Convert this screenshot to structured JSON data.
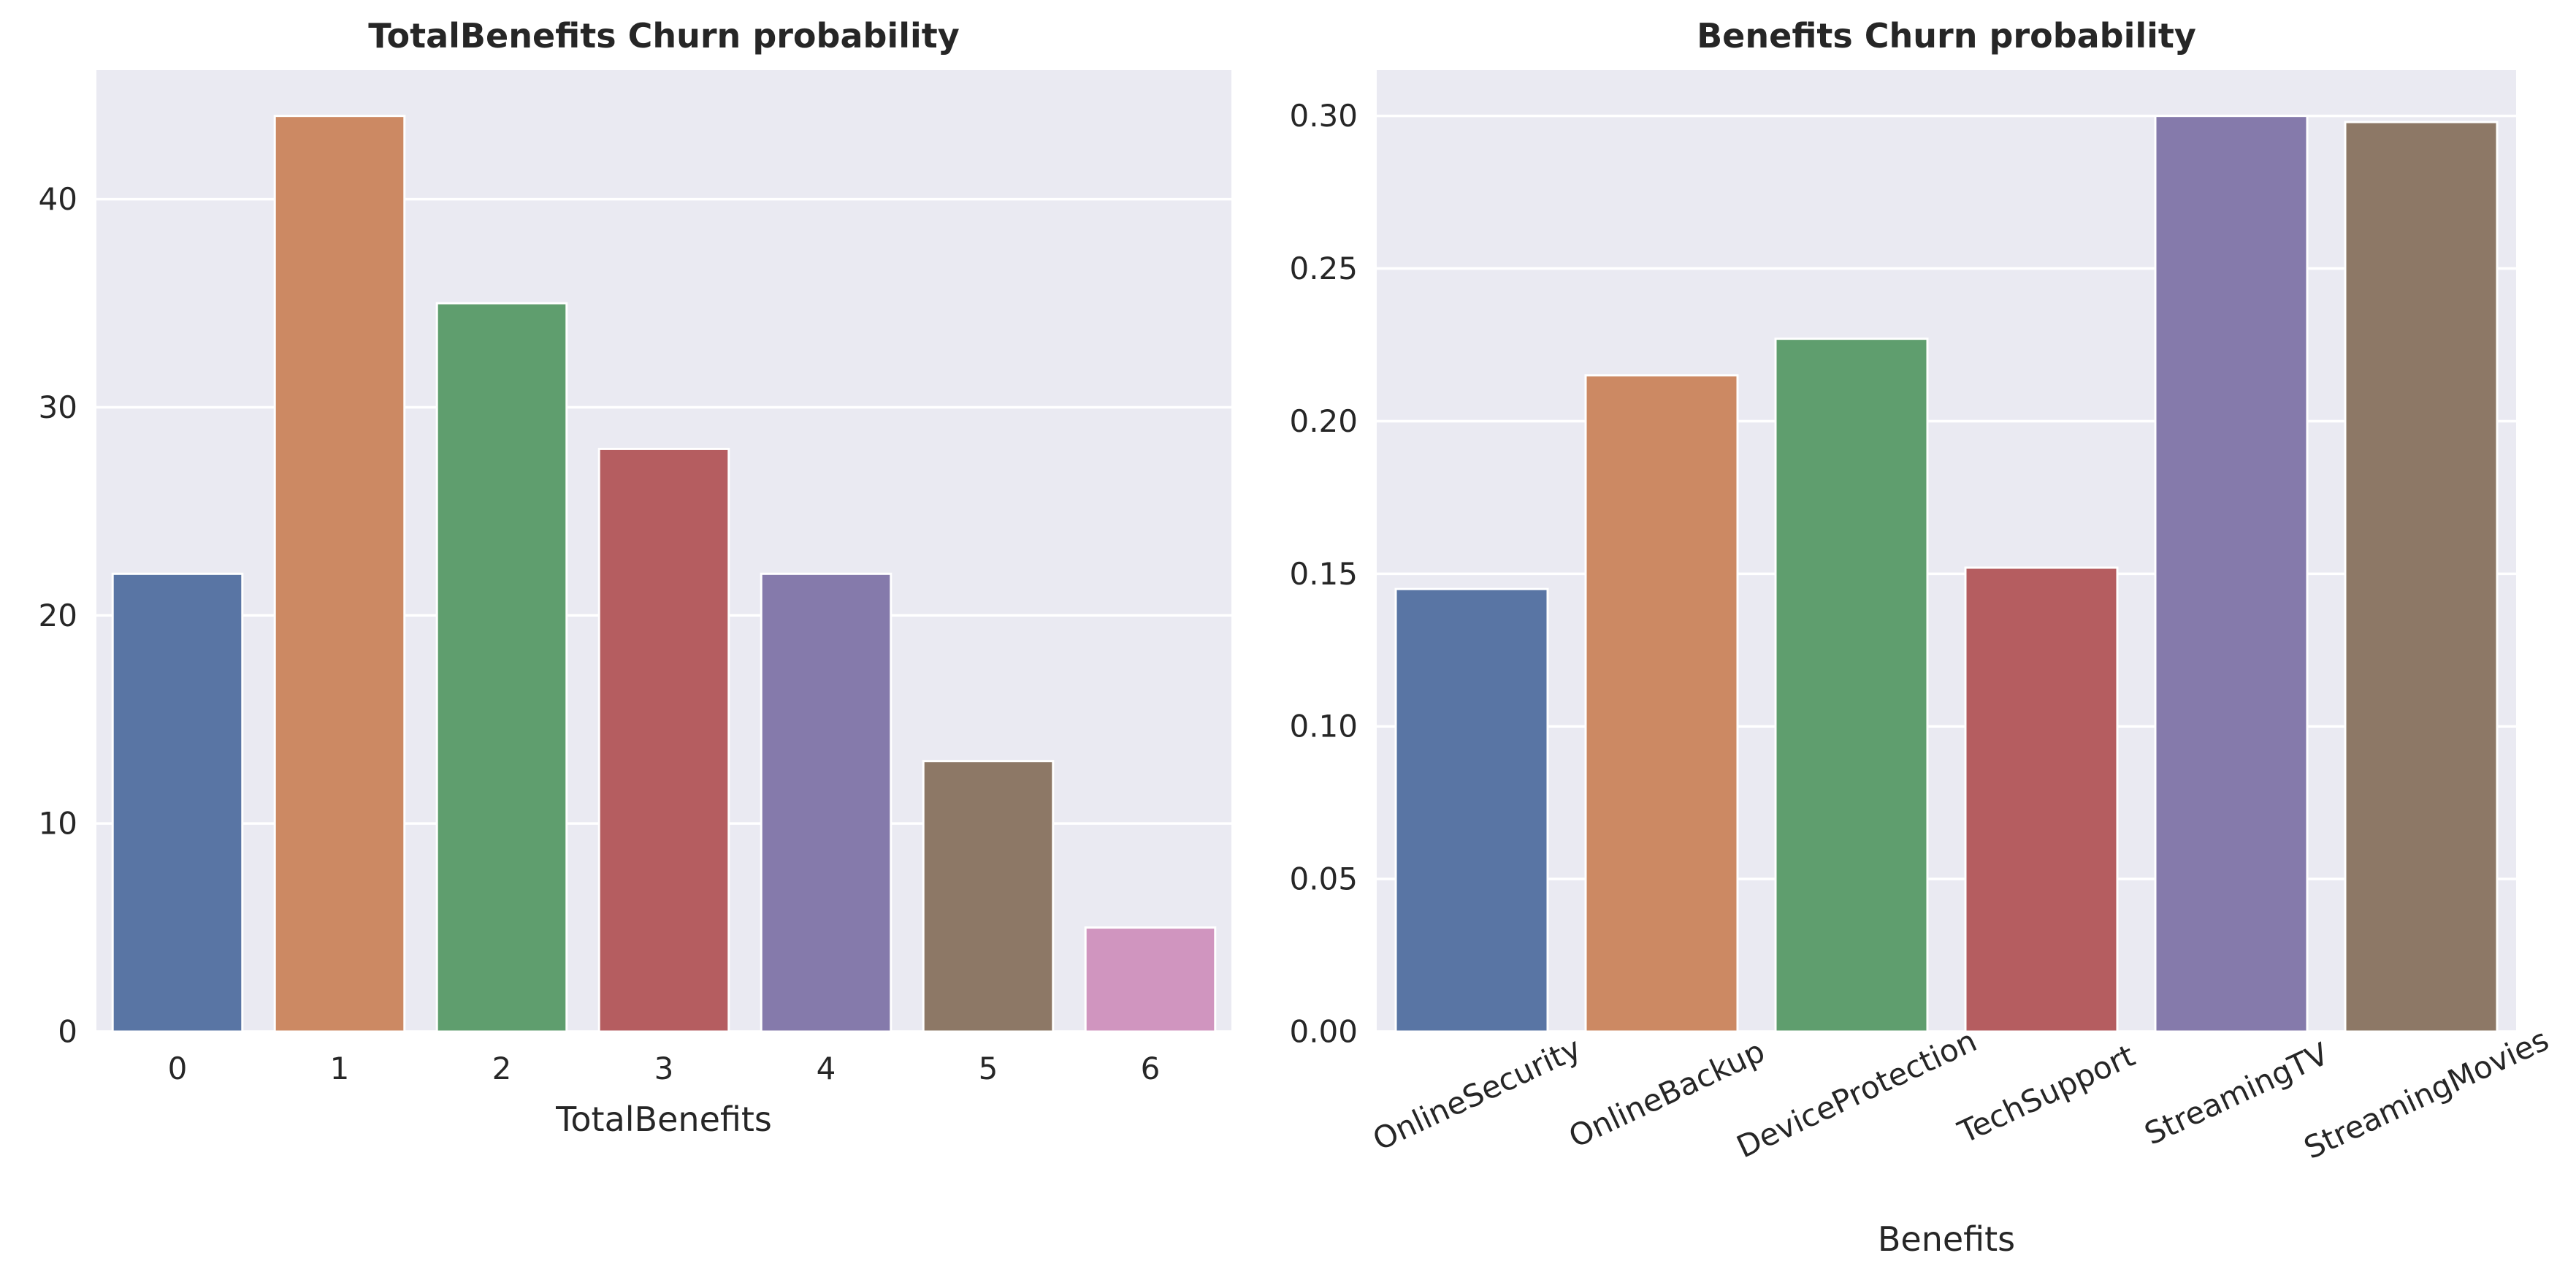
{
  "chart_data": [
    {
      "type": "bar",
      "title": "TotalBenefits Churn probability",
      "xlabel": "TotalBenefits",
      "ylabel": "",
      "categories": [
        "0",
        "1",
        "2",
        "3",
        "4",
        "5",
        "6"
      ],
      "values": [
        22,
        44,
        35,
        28,
        22,
        13,
        5
      ],
      "ylim": [
        0,
        46.2
      ],
      "yticks": [
        0,
        10,
        20,
        30,
        40
      ],
      "ytick_labels": [
        "0",
        "10",
        "20",
        "30",
        "40"
      ],
      "colors": [
        "#5975a4",
        "#cc8963",
        "#5f9e6e",
        "#b55d60",
        "#857aab",
        "#8d7866",
        "#d095bf"
      ],
      "background": "#eaeaf2",
      "grid": true,
      "xtick_rotation": 0
    },
    {
      "type": "bar",
      "title": "Benefits Churn probability",
      "xlabel": "Benefits",
      "ylabel": "",
      "categories": [
        "OnlineSecurity",
        "OnlineBackup",
        "DeviceProtection",
        "TechSupport",
        "StreamingTV",
        "StreamingMovies"
      ],
      "values": [
        0.145,
        0.215,
        0.227,
        0.152,
        0.3,
        0.298
      ],
      "ylim": [
        0,
        0.315
      ],
      "yticks": [
        0,
        0.05,
        0.1,
        0.15,
        0.2,
        0.25,
        0.3
      ],
      "ytick_labels": [
        "0.00",
        "0.05",
        "0.10",
        "0.15",
        "0.20",
        "0.25",
        "0.30"
      ],
      "colors": [
        "#5975a4",
        "#cc8963",
        "#5f9e6e",
        "#b55d60",
        "#857aab",
        "#8d7866"
      ],
      "background": "#eaeaf2",
      "grid": true,
      "xtick_rotation": -25
    }
  ]
}
